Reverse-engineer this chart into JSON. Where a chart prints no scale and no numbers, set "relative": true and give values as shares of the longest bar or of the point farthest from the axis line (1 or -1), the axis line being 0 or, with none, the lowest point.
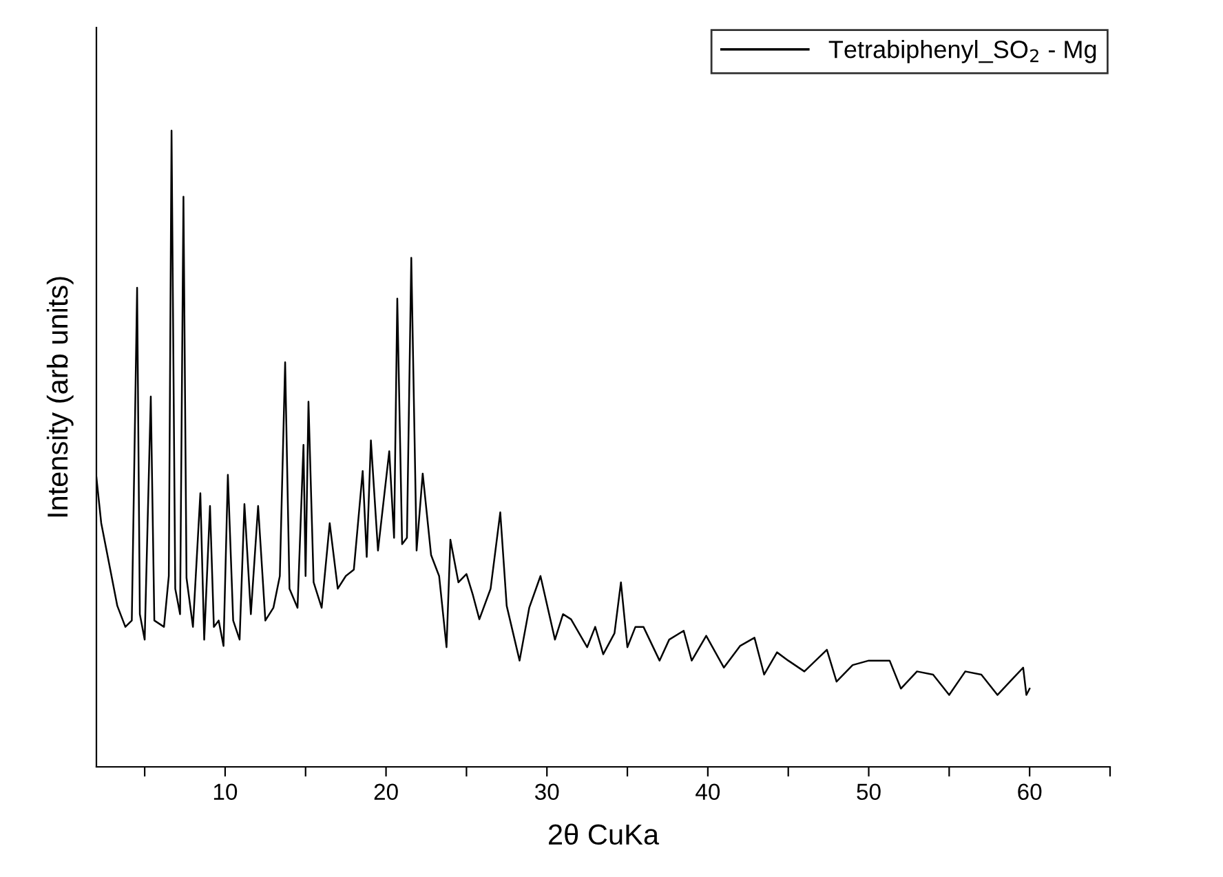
{
  "chart_data": {
    "type": "line",
    "relative": true,
    "xlabel": "2θ CuKa",
    "ylabel": "Intensity (arb units)",
    "xlim": [
      2,
      65
    ],
    "xticks": [
      {
        "value": 5,
        "label": null
      },
      10,
      {
        "value": 15,
        "label": null
      },
      20,
      {
        "value": 25,
        "label": null
      },
      30,
      {
        "value": 35,
        "label": null
      },
      40,
      {
        "value": 45,
        "label": null
      },
      50,
      {
        "value": 55,
        "label": null
      },
      60,
      {
        "value": 65,
        "label": null
      }
    ],
    "tick_labels": "x",
    "legend": "top right",
    "series": [
      {
        "name": "Tetrabiphenyl_SO$_{2}$ - Mg",
        "color": "#000000",
        "x": [
          2.0,
          2.3,
          2.8,
          3.3,
          3.8,
          4.2,
          4.53,
          4.7,
          5.0,
          5.38,
          5.6,
          6.2,
          6.5,
          6.67,
          6.9,
          7.2,
          7.41,
          7.6,
          8.0,
          8.46,
          8.7,
          9.06,
          9.3,
          9.6,
          9.9,
          10.17,
          10.5,
          10.9,
          11.2,
          11.6,
          12.05,
          12.5,
          13.0,
          13.4,
          13.73,
          14.0,
          14.5,
          14.87,
          15.0,
          15.18,
          15.5,
          16.0,
          16.5,
          17.0,
          17.5,
          18.0,
          18.55,
          18.8,
          19.06,
          19.5,
          20.2,
          20.5,
          20.7,
          21.0,
          21.3,
          21.57,
          21.9,
          22.28,
          22.8,
          23.3,
          23.76,
          24.0,
          24.5,
          25.0,
          25.4,
          25.8,
          26.5,
          27.1,
          27.5,
          28.3,
          28.9,
          29.6,
          30.5,
          31.0,
          31.5,
          32.5,
          33.0,
          33.5,
          34.2,
          34.6,
          35.0,
          35.5,
          36.0,
          37.0,
          37.6,
          38.5,
          39.0,
          39.9,
          41.0,
          42.0,
          42.9,
          43.5,
          44.3,
          45.0,
          46.0,
          47.4,
          48.0,
          49.0,
          50.0,
          51.3,
          52.0,
          53.0,
          54.0,
          55.0,
          56.0,
          57.0,
          58.0,
          59.0,
          59.6,
          59.8,
          60.0
        ],
        "values": [
          0.455,
          0.383,
          0.318,
          0.253,
          0.22,
          0.23,
          0.753,
          0.24,
          0.2,
          0.582,
          0.23,
          0.22,
          0.3,
          1.0,
          0.28,
          0.24,
          0.896,
          0.297,
          0.22,
          0.43,
          0.2,
          0.41,
          0.22,
          0.23,
          0.19,
          0.459,
          0.23,
          0.2,
          0.413,
          0.24,
          0.41,
          0.23,
          0.25,
          0.3,
          0.636,
          0.28,
          0.25,
          0.506,
          0.3,
          0.574,
          0.29,
          0.25,
          0.383,
          0.28,
          0.3,
          0.31,
          0.465,
          0.33,
          0.513,
          0.34,
          0.496,
          0.36,
          0.736,
          0.35,
          0.36,
          0.8,
          0.34,
          0.461,
          0.333,
          0.3,
          0.188,
          0.357,
          0.29,
          0.303,
          0.27,
          0.232,
          0.28,
          0.4,
          0.253,
          0.167,
          0.25,
          0.3,
          0.2,
          0.24,
          0.232,
          0.188,
          0.22,
          0.177,
          0.21,
          0.29,
          0.188,
          0.22,
          0.22,
          0.167,
          0.2,
          0.214,
          0.167,
          0.206,
          0.156,
          0.19,
          0.203,
          0.145,
          0.18,
          0.167,
          0.15,
          0.184,
          0.134,
          0.16,
          0.167,
          0.167,
          0.123,
          0.15,
          0.145,
          0.113,
          0.15,
          0.145,
          0.113,
          0.14,
          0.156,
          0.113,
          0.123
        ]
      }
    ]
  }
}
